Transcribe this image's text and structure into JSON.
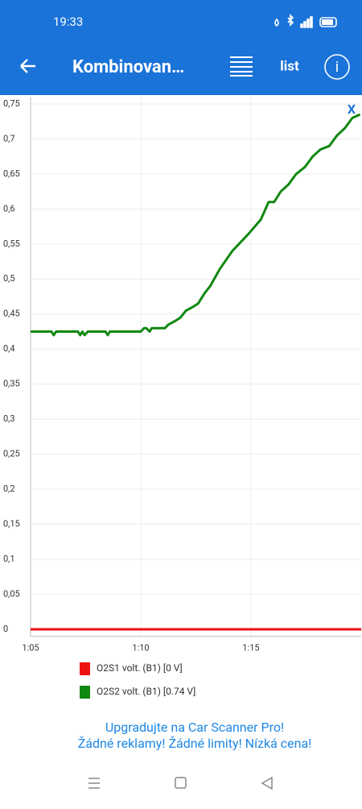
{
  "status_bar": {
    "time": "19:33"
  },
  "header": {
    "title": "Kombinovan…",
    "list_button": "list"
  },
  "chart_data": {
    "type": "line",
    "reset_button": "X",
    "xlim": [
      65,
      80
    ],
    "ylim": [
      -0.01,
      0.76
    ],
    "xticks": [
      {
        "value": 65,
        "label": "1:05"
      },
      {
        "value": 70,
        "label": "1:10"
      },
      {
        "value": 75,
        "label": "1:15"
      }
    ],
    "yticks": [
      {
        "value": 0,
        "label": "0"
      },
      {
        "value": 0.05,
        "label": "0,05"
      },
      {
        "value": 0.1,
        "label": "0,1"
      },
      {
        "value": 0.15,
        "label": "0,15"
      },
      {
        "value": 0.2,
        "label": "0,2"
      },
      {
        "value": 0.25,
        "label": "0,25"
      },
      {
        "value": 0.3,
        "label": "0,3"
      },
      {
        "value": 0.35,
        "label": "0,35"
      },
      {
        "value": 0.4,
        "label": "0,4"
      },
      {
        "value": 0.45,
        "label": "0,45"
      },
      {
        "value": 0.5,
        "label": "0,5"
      },
      {
        "value": 0.55,
        "label": "0,55"
      },
      {
        "value": 0.6,
        "label": "0,6"
      },
      {
        "value": 0.65,
        "label": "0,65"
      },
      {
        "value": 0.7,
        "label": "0,7"
      },
      {
        "value": 0.75,
        "label": "0,75"
      }
    ],
    "grid": true,
    "series": [
      {
        "name": "O2S1 volt. (B1) [0 V]",
        "color": "#ee1111",
        "x": [
          65,
          80
        ],
        "values": [
          0,
          0
        ]
      },
      {
        "name": "O2S2 volt. (B1) [0.74 V]",
        "color": "#118811",
        "x": [
          65,
          65.95,
          66.05,
          66.16,
          67.15,
          67.25,
          67.35,
          67.45,
          67.6,
          68.4,
          68.5,
          68.6,
          70,
          70.15,
          70.25,
          70.4,
          70.5,
          71.1,
          71.25,
          71.55,
          71.8,
          72.05,
          72.35,
          72.6,
          72.9,
          73.15,
          73.6,
          74.15,
          74.9,
          75.45,
          75.8,
          76.05,
          76.35,
          76.7,
          77.05,
          77.45,
          77.8,
          78.15,
          78.55,
          78.9,
          79.25,
          79.6,
          79.95
        ],
        "values": [
          0.425,
          0.425,
          0.42,
          0.425,
          0.425,
          0.42,
          0.425,
          0.42,
          0.425,
          0.425,
          0.42,
          0.425,
          0.425,
          0.43,
          0.43,
          0.425,
          0.43,
          0.43,
          0.435,
          0.44,
          0.445,
          0.455,
          0.46,
          0.465,
          0.48,
          0.49,
          0.515,
          0.54,
          0.565,
          0.585,
          0.61,
          0.61,
          0.625,
          0.635,
          0.65,
          0.66,
          0.675,
          0.685,
          0.69,
          0.705,
          0.715,
          0.73,
          0.735
        ]
      }
    ]
  },
  "promo": {
    "line1": "Upgradujte na Car Scanner Pro!",
    "line2": "Žádné reklamy! Žádné limity! Nízká cena!"
  }
}
